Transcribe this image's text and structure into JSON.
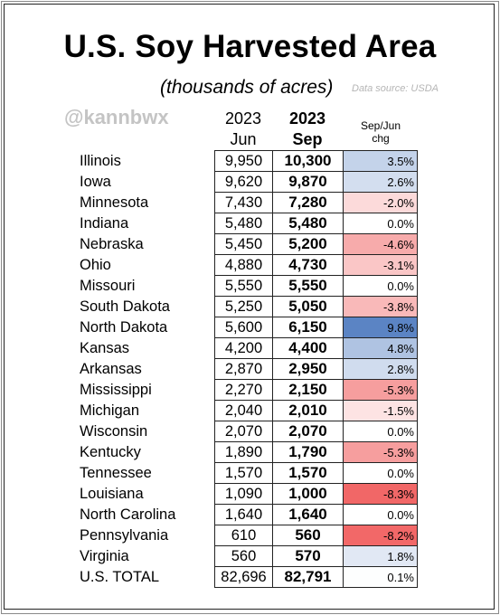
{
  "title": "U.S. Soy Harvested Area",
  "subtitle": "(thousands of acres)",
  "source": "Data source: USDA",
  "handle": "@kannbwx",
  "headers": {
    "jun_year": "2023",
    "jun": "Jun",
    "sep_year": "2023",
    "sep": "Sep",
    "chg_line1": "Sep/Jun",
    "chg_line2": "chg"
  },
  "colors": {
    "positive": "#5b84c4",
    "negative": "#ef4b4b",
    "neutral": "#ffffff"
  },
  "chart_data": {
    "type": "table",
    "columns": [
      "",
      "2023 Jun",
      "2023 Sep",
      "Sep/Jun chg"
    ],
    "rows": [
      {
        "state": "Illinois",
        "jun": "9,950",
        "sep": "10,300",
        "chg": "3.5%",
        "pct": 3.5
      },
      {
        "state": "Iowa",
        "jun": "9,620",
        "sep": "9,870",
        "chg": "2.6%",
        "pct": 2.6
      },
      {
        "state": "Minnesota",
        "jun": "7,430",
        "sep": "7,280",
        "chg": "-2.0%",
        "pct": -2.0
      },
      {
        "state": "Indiana",
        "jun": "5,480",
        "sep": "5,480",
        "chg": "0.0%",
        "pct": 0.0
      },
      {
        "state": "Nebraska",
        "jun": "5,450",
        "sep": "5,200",
        "chg": "-4.6%",
        "pct": -4.6
      },
      {
        "state": "Ohio",
        "jun": "4,880",
        "sep": "4,730",
        "chg": "-3.1%",
        "pct": -3.1
      },
      {
        "state": "Missouri",
        "jun": "5,550",
        "sep": "5,550",
        "chg": "0.0%",
        "pct": 0.0
      },
      {
        "state": "South Dakota",
        "jun": "5,250",
        "sep": "5,050",
        "chg": "-3.8%",
        "pct": -3.8
      },
      {
        "state": "North Dakota",
        "jun": "5,600",
        "sep": "6,150",
        "chg": "9.8%",
        "pct": 9.8
      },
      {
        "state": "Kansas",
        "jun": "4,200",
        "sep": "4,400",
        "chg": "4.8%",
        "pct": 4.8
      },
      {
        "state": "Arkansas",
        "jun": "2,870",
        "sep": "2,950",
        "chg": "2.8%",
        "pct": 2.8
      },
      {
        "state": "Mississippi",
        "jun": "2,270",
        "sep": "2,150",
        "chg": "-5.3%",
        "pct": -5.3
      },
      {
        "state": "Michigan",
        "jun": "2,040",
        "sep": "2,010",
        "chg": "-1.5%",
        "pct": -1.5
      },
      {
        "state": "Wisconsin",
        "jun": "2,070",
        "sep": "2,070",
        "chg": "0.0%",
        "pct": 0.0
      },
      {
        "state": "Kentucky",
        "jun": "1,890",
        "sep": "1,790",
        "chg": "-5.3%",
        "pct": -5.3
      },
      {
        "state": "Tennessee",
        "jun": "1,570",
        "sep": "1,570",
        "chg": "0.0%",
        "pct": 0.0
      },
      {
        "state": "Louisiana",
        "jun": "1,090",
        "sep": "1,000",
        "chg": "-8.3%",
        "pct": -8.3
      },
      {
        "state": "North Carolina",
        "jun": "1,640",
        "sep": "1,640",
        "chg": "0.0%",
        "pct": 0.0
      },
      {
        "state": "Pennsylvania",
        "jun": "610",
        "sep": "560",
        "chg": "-8.2%",
        "pct": -8.2
      },
      {
        "state": "Virginia",
        "jun": "560",
        "sep": "570",
        "chg": "1.8%",
        "pct": 1.8
      },
      {
        "state": "U.S. TOTAL",
        "jun": "82,696",
        "sep": "82,791",
        "chg": "0.1%",
        "pct": 0.1
      }
    ]
  }
}
